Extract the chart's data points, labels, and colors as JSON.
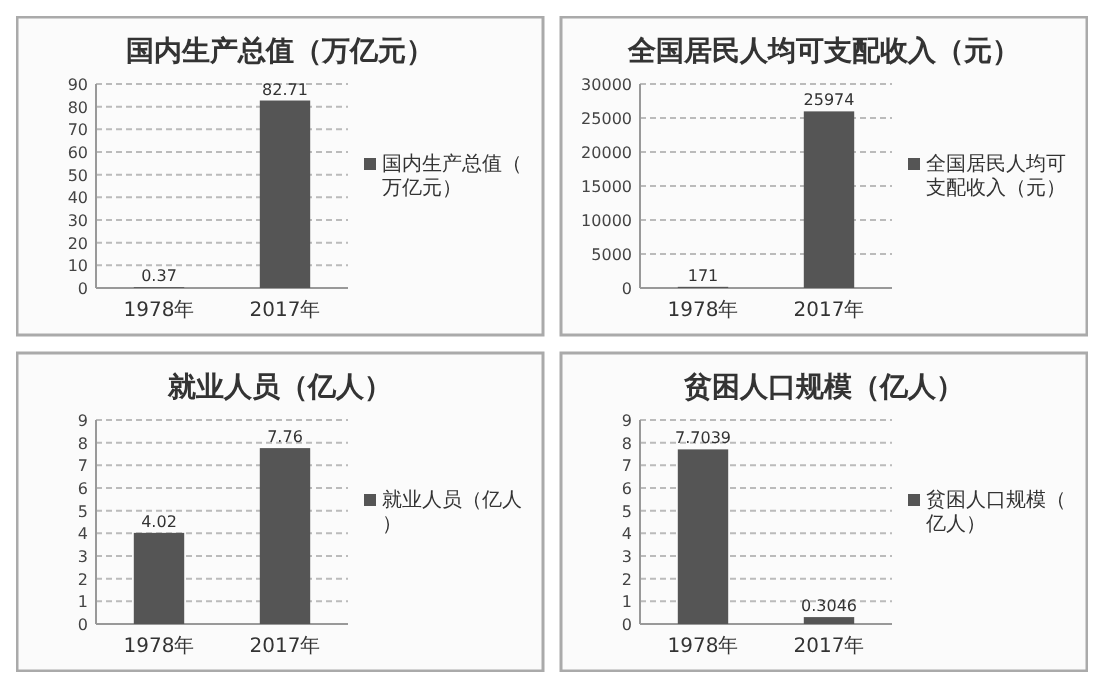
{
  "chart_data": [
    {
      "type": "bar",
      "title": "国内生产总值（万亿元）",
      "categories": [
        "1978年",
        "2017年"
      ],
      "series": [
        {
          "name": "国内生产总值（万亿元）",
          "color": "#555555",
          "values": [
            0.37,
            82.71
          ]
        }
      ],
      "ylim": [
        0,
        90
      ],
      "yticks": [
        0,
        10,
        20,
        30,
        40,
        50,
        60,
        70,
        80,
        90
      ],
      "grid": "y",
      "legend": "right",
      "data_labels": true
    },
    {
      "type": "bar",
      "title": "全国居民人均可支配收入（元）",
      "categories": [
        "1978年",
        "2017年"
      ],
      "series": [
        {
          "name": "全国居民人均可支配收入（元）",
          "color": "#555555",
          "values": [
            171,
            25974
          ]
        }
      ],
      "ylim": [
        0,
        30000
      ],
      "yticks": [
        0,
        5000,
        10000,
        15000,
        20000,
        25000,
        30000
      ],
      "grid": "y",
      "legend": "right",
      "data_labels": true
    },
    {
      "type": "bar",
      "title": "就业人员（亿人）",
      "categories": [
        "1978年",
        "2017年"
      ],
      "series": [
        {
          "name": "就业人员（亿人）",
          "color": "#555555",
          "values": [
            4.02,
            7.76
          ]
        }
      ],
      "ylim": [
        0,
        9
      ],
      "yticks": [
        0,
        1,
        2,
        3,
        4,
        5,
        6,
        7,
        8,
        9
      ],
      "grid": "y",
      "legend": "right",
      "data_labels": true
    },
    {
      "type": "bar",
      "title": "贫困人口规模（亿人）",
      "categories": [
        "1978年",
        "2017年"
      ],
      "series": [
        {
          "name": "贫困人口规模（亿人）",
          "color": "#555555",
          "values": [
            7.7039,
            0.3046
          ]
        }
      ],
      "ylim": [
        0,
        9
      ],
      "yticks": [
        0,
        1,
        2,
        3,
        4,
        5,
        6,
        7,
        8,
        9
      ],
      "grid": "y",
      "legend": "right",
      "data_labels": true
    }
  ]
}
